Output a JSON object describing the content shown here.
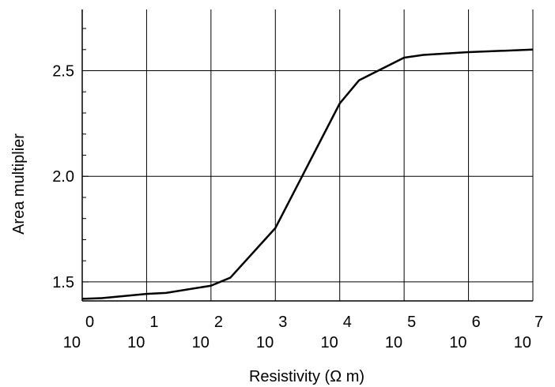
{
  "chart_data": {
    "type": "line",
    "title": "",
    "xlabel": "Resistivity (Ω m)",
    "ylabel": "Area multiplier",
    "x_scale": "log",
    "xlim": [
      1,
      10000000
    ],
    "ylim": [
      1.41,
      2.79
    ],
    "grid": true,
    "x_ticks": [
      {
        "value": 1,
        "base": "10",
        "exp": "0"
      },
      {
        "value": 10,
        "base": "10",
        "exp": "1"
      },
      {
        "value": 100,
        "base": "10",
        "exp": "2"
      },
      {
        "value": 1000,
        "base": "10",
        "exp": "3"
      },
      {
        "value": 10000,
        "base": "10",
        "exp": "4"
      },
      {
        "value": 100000,
        "base": "10",
        "exp": "5"
      },
      {
        "value": 1000000,
        "base": "10",
        "exp": "6"
      },
      {
        "value": 10000000,
        "base": "10",
        "exp": "7"
      }
    ],
    "y_ticks": [
      {
        "value": 1.5,
        "label": "1.5"
      },
      {
        "value": 2.0,
        "label": "2.0"
      },
      {
        "value": 2.5,
        "label": "2.5"
      }
    ],
    "series": [
      {
        "name": "",
        "color": "#000000",
        "x": [
          1,
          2,
          10,
          20,
          100,
          200,
          1000,
          10000,
          20000,
          100000,
          200000,
          1000000,
          10000000
        ],
        "y": [
          1.42,
          1.423,
          1.443,
          1.448,
          1.482,
          1.52,
          1.755,
          2.345,
          2.455,
          2.562,
          2.575,
          2.588,
          2.6
        ]
      }
    ]
  }
}
